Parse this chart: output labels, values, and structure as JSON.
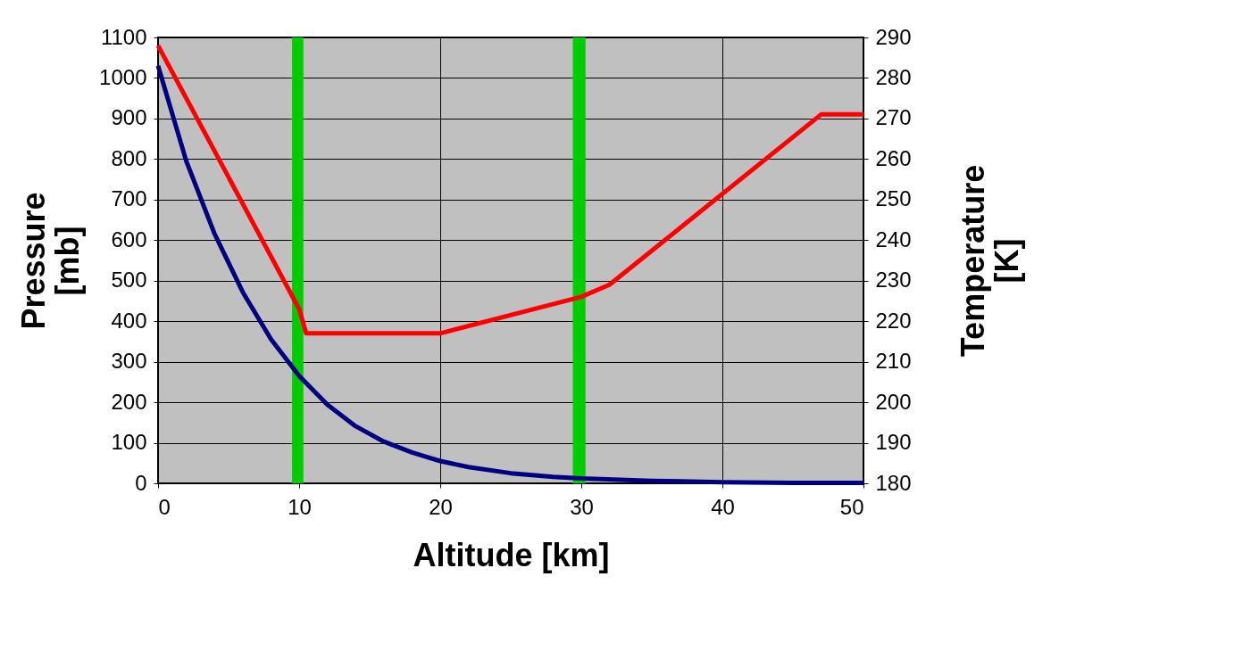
{
  "chart_data": {
    "type": "line",
    "xlabel": "Altitude [km]",
    "ylabel": "Pressure [mb]",
    "y2label": "Temperature [K]",
    "xlim": [
      0,
      50
    ],
    "xticks": [
      0,
      10,
      20,
      30,
      40,
      50
    ],
    "ylim": [
      0,
      1100
    ],
    "yticks": [
      0,
      100,
      200,
      300,
      400,
      500,
      600,
      700,
      800,
      900,
      1000,
      1100
    ],
    "y2lim": [
      180,
      290
    ],
    "y2ticks": [
      180,
      190,
      200,
      210,
      220,
      230,
      240,
      250,
      260,
      270,
      280,
      290
    ],
    "grid": true,
    "series": [
      {
        "color": "#000080",
        "x": [
          0,
          2,
          4,
          6,
          8,
          10,
          12,
          14,
          16,
          18,
          20,
          22,
          25,
          28,
          30,
          35,
          40,
          45,
          50
        ],
        "values": [
          1030,
          795,
          616,
          472,
          356,
          265,
          194,
          141,
          103,
          76,
          55,
          40,
          25,
          16,
          12,
          6,
          3,
          1,
          1
        ]
      },
      {
        "color": "#ff0000",
        "axis": "y2",
        "x": [
          0,
          10,
          10.5,
          20,
          30,
          32,
          47,
          50
        ],
        "values": [
          288,
          223,
          217,
          217,
          226,
          229,
          271,
          271
        ]
      }
    ],
    "bands": [
      {
        "axis": "x",
        "from": 9.5,
        "to": 10.3,
        "color": "#00cc00"
      },
      {
        "axis": "x",
        "from": 29.4,
        "to": 30.3,
        "color": "#00cc00"
      }
    ]
  }
}
